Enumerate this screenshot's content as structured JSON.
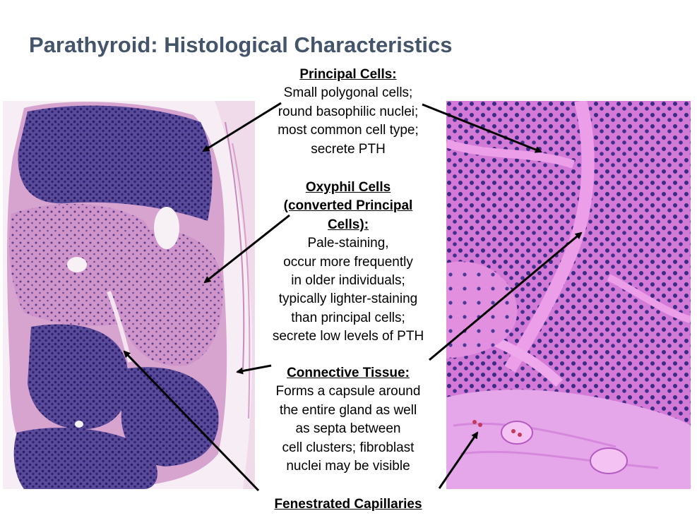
{
  "slide": {
    "title": "Parathyroid: Histological Characteristics"
  },
  "labels": {
    "principal": {
      "heading": "Principal Cells:",
      "lines": "Small polygonal cells;\nround basophilic nuclei;\nmost common cell type;\nsecrete PTH"
    },
    "oxyphil": {
      "heading": "Oxyphil Cells\n(converted Principal\nCells):",
      "lines": "Pale-staining,\noccur more frequently\nin older individuals;\ntypically lighter-staining\nthan principal cells;\nsecrete low levels of PTH"
    },
    "connective": {
      "heading": "Connective Tissue:",
      "lines": "Forms a capsule around\nthe entire gland as well\nas septa between\ncell clusters; fibroblast\nnuclei may be visible"
    },
    "fenestrated": {
      "heading": "Fenestrated Capillaries"
    }
  },
  "colors": {
    "title": "#44546a",
    "stain_purple": "#3a2a78",
    "stain_pink": "#d98fc8",
    "stain_bright_pink": "#e070e0"
  }
}
